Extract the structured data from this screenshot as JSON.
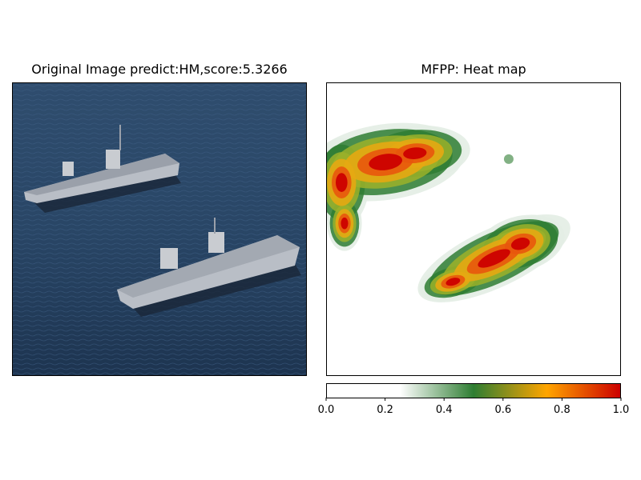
{
  "left_panel": {
    "title": "Original Image predict:HM,score:5.3266",
    "image_description_icon": "aircraft-carriers-photo"
  },
  "chart_data": {
    "type": "heatmap",
    "title": "MFPP: Heat map",
    "colormap": [
      "#ffffff",
      "#ffffff",
      "#2e7d32",
      "#ffa500",
      "#cc0000"
    ],
    "colormap_stops": [
      0.0,
      0.25,
      0.5,
      0.75,
      1.0
    ],
    "colorbar": {
      "ticks": [
        0.0,
        0.2,
        0.4,
        0.6,
        0.8,
        1.0
      ],
      "tick_labels": [
        "0.0",
        "0.2",
        "0.4",
        "0.6",
        "0.8",
        "1.0"
      ],
      "range": [
        0.0,
        1.0
      ]
    },
    "blobs": [
      {
        "cx": 0.2,
        "cy": 0.28,
        "peak": 1.0
      },
      {
        "cx": 0.05,
        "cy": 0.33,
        "peak": 0.95
      },
      {
        "cx": 0.32,
        "cy": 0.22,
        "peak": 0.9
      },
      {
        "cx": 0.47,
        "cy": 0.66,
        "peak": 1.0
      },
      {
        "cx": 0.62,
        "cy": 0.57,
        "peak": 0.85
      },
      {
        "cx": 0.7,
        "cy": 0.53,
        "peak": 0.8
      }
    ]
  }
}
